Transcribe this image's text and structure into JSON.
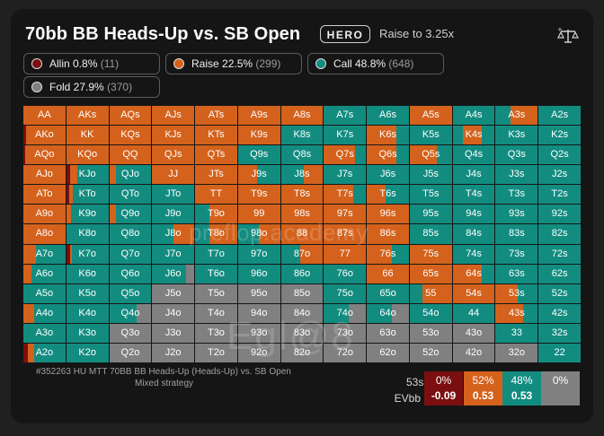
{
  "title": "70bb BB Heads-Up vs. SB Open",
  "hero_badge": "HERO",
  "subtitle": "Raise to 3.25x",
  "colors": {
    "allin": "#7b0f0f",
    "raise": "#d4621c",
    "call": "#138c80",
    "fold": "#808080"
  },
  "legend": {
    "allin": {
      "label": "Allin 0.8%",
      "count": "(11)"
    },
    "raise": {
      "label": "Raise 22.5%",
      "count": "(299)"
    },
    "call": {
      "label": "Call 48.8%",
      "count": "(648)"
    },
    "fold": {
      "label": "Fold 27.9%",
      "count": "(370)"
    }
  },
  "watermark_text": "preflop.academy",
  "watermark_mark": "Egl@8",
  "footer_line1": "#352263 HU MTT 70BB BB Heads-Up (Heads-Up) vs. SB Open",
  "footer_line2": "Mixed strategy",
  "selected": {
    "hand": "53s:",
    "ev_label": "EVbb",
    "boxes": [
      {
        "freq": "0%",
        "ev": "-0.09",
        "action": "allin"
      },
      {
        "freq": "52%",
        "ev": "0.53",
        "action": "raise"
      },
      {
        "freq": "48%",
        "ev": "0.53",
        "action": "call"
      },
      {
        "freq": "0%",
        "ev": "",
        "action": "fold"
      }
    ]
  },
  "matrix_rows": [
    [
      "AA|R",
      "AKs|R",
      "AQs|R",
      "AJs|R",
      "ATs|R",
      "A9s|R",
      "A8s|R",
      "A7s|C",
      "A6s|C",
      "A5s|R",
      "A4s|C",
      "A3s|C:.35,R:.65",
      "A2s|C"
    ],
    [
      "AKo|A:.07,R:.93",
      "KK|R",
      "KQs|R",
      "KJs|R",
      "KTs|R",
      "K9s|R",
      "K8s|C",
      "K7s|C",
      "K6s|R:.7,C:.3",
      "K5s|C",
      "K4s|C:.25,R:.45,C:.3",
      "K3s|C",
      "K2s|C"
    ],
    [
      "AQo|A:.05,R:.95",
      "KQo|R",
      "QQ|R",
      "QJs|R",
      "QTs|R",
      "Q9s|C",
      "Q8s|C",
      "Q7s|R:.75,C:.25",
      "Q6s|R:.7,C:.3",
      "Q5s|R:.65,C:.35",
      "Q4s|C",
      "Q3s|C",
      "Q2s|C"
    ],
    [
      "AJo|R",
      "KJo|A:.08,R:.18,C:.74",
      "QJo|R:.15,C:.85",
      "JJ|R",
      "JTs|R",
      "J9s|R:.45,C:.55",
      "J8s|C:.55,R:.45",
      "J7s|C",
      "J6s|C",
      "J5s|C",
      "J4s|C",
      "J3s|C",
      "J2s|C"
    ],
    [
      "ATo|R",
      "KTo|A:.06,R:.1,C:.84",
      "QTo|C",
      "JTo|C",
      "TT|R",
      "T9s|R",
      "T8s|R",
      "T7s|R:.7,C:.3",
      "T6s|R:.45,C:.55",
      "T5s|C",
      "T4s|C",
      "T3s|C",
      "T2s|C"
    ],
    [
      "A9o|R",
      "K9o|R:.12,C:.88",
      "Q9o|R:.15,C:.85",
      "J9o|C",
      "T9o|C:.35,R:.65",
      "99|R",
      "98s|R",
      "97s|R",
      "96s|R",
      "95s|C",
      "94s|C",
      "93s|C",
      "92s|C"
    ],
    [
      "A8o|R",
      "K8o|C",
      "Q8o|C",
      "J8o|C:.5,R:.5",
      "T8o|C:.35,R:.65",
      "98o|C:.5,R:.5",
      "88|R",
      "87s|R",
      "86s|R",
      "85s|C",
      "84s|C",
      "83s|C",
      "82s|C"
    ],
    [
      "A7o|R:.3,C:.7",
      "K7o|A:.08,R:.05,C:.87",
      "Q7o|C",
      "J7o|C",
      "T7o|C",
      "97o|C",
      "87o|C:.45,R:.55",
      "77|R",
      "76s|R:.6,C:.4",
      "75s|R",
      "74s|C",
      "73s|C",
      "72s|C"
    ],
    [
      "A6o|R:.2,C:.8",
      "K6o|C",
      "Q6o|C",
      "J6o|C:.8,F:.2",
      "T6o|C",
      "96o|C",
      "86o|C",
      "76o|C",
      "66|R",
      "65s|R",
      "64s|R:.7,C:.3",
      "63s|C",
      "62s|C"
    ],
    [
      "A5o|C",
      "K5o|C",
      "Q5o|C",
      "J5o|F",
      "T5o|F",
      "95o|F",
      "85o|F",
      "75o|C",
      "65o|C",
      "55|C:.3,R:.7",
      "54s|R",
      "53s|R:.52,C:.48",
      "52s|C"
    ],
    [
      "A4o|R:.25,C:.75",
      "K4o|C",
      "Q4o|C:.65,F:.35",
      "J4o|F",
      "T4o|F",
      "94o|F",
      "84o|F",
      "74o|C:.6,F:.4",
      "64o|C:.6,F:.4",
      "54o|C",
      "44|C",
      "43s|R:.65,C:.35",
      "42s|C"
    ],
    [
      "A3o|C",
      "K3o|C",
      "Q3o|F",
      "J3o|F",
      "T3o|F",
      "93o|F",
      "83o|F",
      "73o|F",
      "63o|F",
      "53o|F",
      "43o|F",
      "33|C",
      "32s|C"
    ],
    [
      "A2o|A:.1,R:.15,C:.75",
      "K2o|C",
      "Q2o|F",
      "J2o|F",
      "T2o|F",
      "92o|F",
      "82o|F",
      "72o|F",
      "62o|F",
      "52o|F",
      "42o|F",
      "32o|F",
      "22|C"
    ]
  ]
}
